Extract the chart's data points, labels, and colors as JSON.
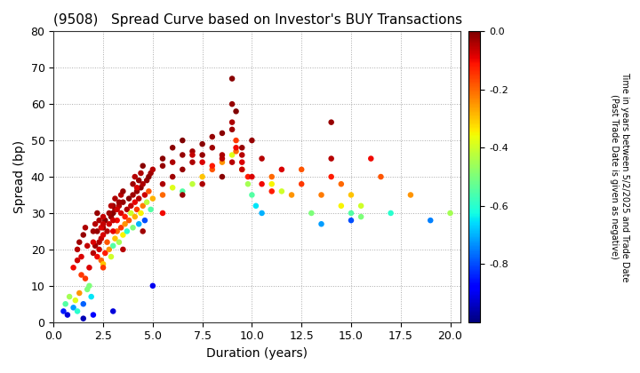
{
  "title": "(9508)   Spread Curve based on Investor's BUY Transactions",
  "xlabel": "Duration (years)",
  "ylabel": "Spread (bp)",
  "xlim": [
    0.0,
    20.5
  ],
  "ylim": [
    0,
    80
  ],
  "xticks": [
    0.0,
    2.5,
    5.0,
    7.5,
    10.0,
    12.5,
    15.0,
    17.5,
    20.0
  ],
  "yticks": [
    0,
    10,
    20,
    30,
    40,
    50,
    60,
    70,
    80
  ],
  "colorbar_label_line1": "Time in years between 5/2/2025 and Trade Date",
  "colorbar_label_line2": "(Past Trade Date is given as negative)",
  "cmap": "jet",
  "clim": [
    -1.0,
    0.0
  ],
  "cticks": [
    0.0,
    -0.2,
    -0.4,
    -0.6,
    -0.8
  ],
  "background_color": "#ffffff",
  "title_fontsize": 11,
  "axis_fontsize": 10,
  "points": [
    [
      0.5,
      3,
      -0.85
    ],
    [
      0.6,
      5,
      -0.55
    ],
    [
      0.7,
      2,
      -0.92
    ],
    [
      0.8,
      7,
      -0.45
    ],
    [
      1.0,
      4,
      -0.72
    ],
    [
      1.1,
      6,
      -0.38
    ],
    [
      1.2,
      3,
      -0.6
    ],
    [
      1.3,
      8,
      -0.25
    ],
    [
      1.5,
      5,
      -0.78
    ],
    [
      1.6,
      12,
      -0.15
    ],
    [
      1.7,
      9,
      -0.5
    ],
    [
      1.8,
      15,
      -0.08
    ],
    [
      1.9,
      7,
      -0.65
    ],
    [
      2.0,
      19,
      -0.05
    ],
    [
      2.1,
      21,
      -0.03
    ],
    [
      2.2,
      18,
      -0.1
    ],
    [
      2.2,
      25,
      -0.02
    ],
    [
      2.3,
      20,
      -0.07
    ],
    [
      2.3,
      22,
      -0.04
    ],
    [
      2.4,
      17,
      -0.2
    ],
    [
      2.4,
      23,
      -0.06
    ],
    [
      2.5,
      16,
      -0.3
    ],
    [
      2.5,
      24,
      -0.08
    ],
    [
      2.5,
      26,
      -0.03
    ],
    [
      2.6,
      19,
      -0.12
    ],
    [
      2.6,
      28,
      -0.01
    ],
    [
      2.7,
      22,
      -0.18
    ],
    [
      2.7,
      25,
      -0.05
    ],
    [
      2.8,
      20,
      -0.25
    ],
    [
      2.8,
      27,
      -0.07
    ],
    [
      2.9,
      18,
      -0.4
    ],
    [
      2.9,
      29,
      -0.02
    ],
    [
      3.0,
      21,
      -0.55
    ],
    [
      3.0,
      30,
      -0.01
    ],
    [
      3.1,
      23,
      -0.3
    ],
    [
      3.1,
      31,
      -0.03
    ],
    [
      3.2,
      25,
      -0.2
    ],
    [
      3.2,
      28,
      -0.1
    ],
    [
      3.3,
      22,
      -0.45
    ],
    [
      3.3,
      32,
      -0.05
    ],
    [
      3.4,
      26,
      -0.15
    ],
    [
      3.4,
      30,
      -0.08
    ],
    [
      3.5,
      24,
      -0.35
    ],
    [
      3.5,
      33,
      -0.02
    ],
    [
      3.6,
      27,
      -0.25
    ],
    [
      3.6,
      29,
      -0.12
    ],
    [
      3.7,
      25,
      -0.6
    ],
    [
      3.7,
      31,
      -0.04
    ],
    [
      3.8,
      28,
      -0.18
    ],
    [
      3.8,
      34,
      -0.01
    ],
    [
      3.9,
      30,
      -0.4
    ],
    [
      3.9,
      32,
      -0.06
    ],
    [
      4.0,
      26,
      -0.5
    ],
    [
      4.0,
      35,
      -0.03
    ],
    [
      4.1,
      29,
      -0.28
    ],
    [
      4.1,
      33,
      -0.09
    ],
    [
      4.2,
      31,
      -0.15
    ],
    [
      4.2,
      36,
      -0.02
    ],
    [
      4.3,
      27,
      -0.7
    ],
    [
      4.3,
      34,
      -0.05
    ],
    [
      4.4,
      30,
      -0.35
    ],
    [
      4.4,
      37,
      -0.01
    ],
    [
      4.5,
      32,
      -0.22
    ],
    [
      4.5,
      38,
      -0.04
    ],
    [
      4.6,
      28,
      -0.8
    ],
    [
      4.6,
      35,
      -0.07
    ],
    [
      4.7,
      33,
      -0.42
    ],
    [
      4.7,
      39,
      -0.02
    ],
    [
      4.8,
      36,
      -0.18
    ],
    [
      4.8,
      40,
      -0.01
    ],
    [
      4.9,
      31,
      -0.55
    ],
    [
      4.9,
      41,
      -0.03
    ],
    [
      5.0,
      34,
      -0.28
    ],
    [
      5.0,
      42,
      -0.05
    ],
    [
      5.0,
      10,
      -0.9
    ],
    [
      5.5,
      35,
      -0.2
    ],
    [
      5.5,
      43,
      -0.02
    ],
    [
      5.5,
      45,
      -0.01
    ],
    [
      6.0,
      37,
      -0.38
    ],
    [
      6.0,
      44,
      -0.04
    ],
    [
      6.0,
      48,
      -0.01
    ],
    [
      6.5,
      36,
      -0.55
    ],
    [
      6.5,
      46,
      -0.02
    ],
    [
      6.5,
      50,
      -0.0
    ],
    [
      7.0,
      38,
      -0.42
    ],
    [
      7.0,
      47,
      -0.03
    ],
    [
      7.0,
      46,
      -0.06
    ],
    [
      7.5,
      40,
      -0.3
    ],
    [
      7.5,
      49,
      -0.01
    ],
    [
      7.5,
      44,
      -0.08
    ],
    [
      8.0,
      42,
      -0.18
    ],
    [
      8.0,
      51,
      -0.02
    ],
    [
      8.0,
      43,
      -0.12
    ],
    [
      8.5,
      44,
      -0.25
    ],
    [
      8.5,
      52,
      -0.01
    ],
    [
      8.5,
      45,
      -0.05
    ],
    [
      9.0,
      46,
      -0.38
    ],
    [
      9.0,
      67,
      -0.01
    ],
    [
      9.0,
      53,
      -0.03
    ],
    [
      9.0,
      60,
      -0.02
    ],
    [
      9.2,
      58,
      -0.0
    ],
    [
      9.0,
      55,
      -0.04
    ],
    [
      9.2,
      50,
      -0.15
    ],
    [
      9.2,
      47,
      -0.2
    ],
    [
      9.2,
      48,
      -0.1
    ],
    [
      9.5,
      42,
      -0.3
    ],
    [
      9.5,
      44,
      -0.08
    ],
    [
      9.5,
      46,
      -0.05
    ],
    [
      9.8,
      38,
      -0.45
    ],
    [
      9.8,
      40,
      -0.12
    ],
    [
      10.0,
      50,
      -0.02
    ],
    [
      10.0,
      35,
      -0.55
    ],
    [
      10.2,
      32,
      -0.65
    ],
    [
      10.5,
      30,
      -0.7
    ],
    [
      11.0,
      40,
      -0.2
    ],
    [
      11.0,
      38,
      -0.35
    ],
    [
      11.5,
      36,
      -0.4
    ],
    [
      12.0,
      35,
      -0.25
    ],
    [
      12.5,
      42,
      -0.18
    ],
    [
      13.0,
      30,
      -0.5
    ],
    [
      13.5,
      27,
      -0.72
    ],
    [
      14.0,
      55,
      -0.02
    ],
    [
      14.0,
      45,
      -0.05
    ],
    [
      14.0,
      40,
      -0.12
    ],
    [
      14.5,
      38,
      -0.2
    ],
    [
      15.0,
      28,
      -0.8
    ],
    [
      15.0,
      35,
      -0.3
    ],
    [
      15.0,
      30,
      -0.55
    ],
    [
      15.5,
      32,
      -0.4
    ],
    [
      16.0,
      45,
      -0.1
    ],
    [
      16.5,
      40,
      -0.18
    ],
    [
      17.0,
      30,
      -0.6
    ],
    [
      18.0,
      35,
      -0.25
    ],
    [
      19.0,
      28,
      -0.75
    ],
    [
      20.0,
      30,
      -0.45
    ],
    [
      1.5,
      1,
      -0.95
    ],
    [
      2.0,
      2,
      -0.88
    ],
    [
      3.0,
      3,
      -0.92
    ],
    [
      1.8,
      10,
      -0.5
    ],
    [
      2.5,
      15,
      -0.15
    ],
    [
      3.5,
      20,
      -0.05
    ],
    [
      4.5,
      25,
      -0.03
    ],
    [
      5.5,
      30,
      -0.1
    ],
    [
      6.5,
      35,
      -0.02
    ],
    [
      7.5,
      38,
      -0.04
    ],
    [
      8.5,
      40,
      -0.01
    ],
    [
      9.5,
      48,
      -0.02
    ],
    [
      10.5,
      45,
      -0.05
    ],
    [
      11.5,
      42,
      -0.08
    ],
    [
      12.5,
      38,
      -0.15
    ],
    [
      13.5,
      35,
      -0.22
    ],
    [
      14.5,
      32,
      -0.35
    ],
    [
      15.5,
      29,
      -0.5
    ],
    [
      2.0,
      25,
      -0.03
    ],
    [
      2.1,
      27,
      -0.05
    ],
    [
      2.2,
      30,
      -0.02
    ],
    [
      2.3,
      28,
      -0.04
    ],
    [
      2.4,
      26,
      -0.08
    ],
    [
      2.5,
      29,
      -0.06
    ],
    [
      3.0,
      32,
      -0.02
    ],
    [
      3.1,
      34,
      -0.04
    ],
    [
      3.2,
      31,
      -0.07
    ],
    [
      3.3,
      33,
      -0.03
    ],
    [
      3.4,
      35,
      -0.05
    ],
    [
      3.5,
      36,
      -0.02
    ],
    [
      4.0,
      38,
      -0.03
    ],
    [
      4.1,
      40,
      -0.05
    ],
    [
      4.2,
      37,
      -0.08
    ],
    [
      4.3,
      39,
      -0.02
    ],
    [
      4.4,
      41,
      -0.04
    ],
    [
      4.5,
      43,
      -0.01
    ],
    [
      1.2,
      20,
      -0.05
    ],
    [
      1.3,
      22,
      -0.03
    ],
    [
      1.4,
      18,
      -0.08
    ],
    [
      1.5,
      24,
      -0.02
    ],
    [
      1.6,
      26,
      -0.04
    ],
    [
      1.7,
      21,
      -0.06
    ],
    [
      2.8,
      30,
      -0.03
    ],
    [
      2.9,
      32,
      -0.05
    ],
    [
      3.0,
      28,
      -0.07
    ],
    [
      5.5,
      38,
      -0.04
    ],
    [
      6.0,
      40,
      -0.03
    ],
    [
      6.5,
      42,
      -0.02
    ],
    [
      7.0,
      44,
      -0.04
    ],
    [
      7.5,
      46,
      -0.02
    ],
    [
      8.0,
      48,
      -0.03
    ],
    [
      8.5,
      46,
      -0.04
    ],
    [
      9.0,
      44,
      -0.05
    ],
    [
      9.5,
      42,
      -0.06
    ],
    [
      10.0,
      40,
      -0.08
    ],
    [
      10.5,
      38,
      -0.1
    ],
    [
      11.0,
      36,
      -0.12
    ],
    [
      1.0,
      15,
      -0.1
    ],
    [
      1.2,
      17,
      -0.07
    ],
    [
      1.4,
      13,
      -0.15
    ],
    [
      2.0,
      22,
      -0.08
    ],
    [
      2.5,
      27,
      -0.06
    ],
    [
      3.0,
      25,
      -0.09
    ]
  ]
}
